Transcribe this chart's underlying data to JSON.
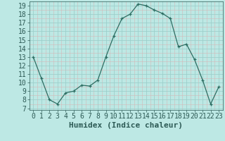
{
  "x": [
    0,
    1,
    2,
    3,
    4,
    5,
    6,
    7,
    8,
    9,
    10,
    11,
    12,
    13,
    14,
    15,
    16,
    17,
    18,
    19,
    20,
    21,
    22,
    23
  ],
  "y": [
    13,
    10.5,
    8,
    7.5,
    8.8,
    9.0,
    9.7,
    9.6,
    10.3,
    13.0,
    15.5,
    17.5,
    18.0,
    19.2,
    19.0,
    18.5,
    18.1,
    17.5,
    14.2,
    14.5,
    12.7,
    10.3,
    7.5,
    9.5
  ],
  "line_color": "#2d6e63",
  "marker": "+",
  "bg_color": "#bde8e4",
  "grid_major_color": "#9dcfcb",
  "grid_minor_color": "#d4b8b8",
  "xlabel": "Humidex (Indice chaleur)",
  "xlim": [
    -0.5,
    23.5
  ],
  "ylim": [
    6.8,
    19.5
  ],
  "yticks": [
    7,
    8,
    9,
    10,
    11,
    12,
    13,
    14,
    15,
    16,
    17,
    18,
    19
  ],
  "xticks": [
    0,
    1,
    2,
    3,
    4,
    5,
    6,
    7,
    8,
    9,
    10,
    11,
    12,
    13,
    14,
    15,
    16,
    17,
    18,
    19,
    20,
    21,
    22,
    23
  ],
  "font_color": "#2d5a55",
  "font_size": 7,
  "xlabel_fontsize": 8
}
